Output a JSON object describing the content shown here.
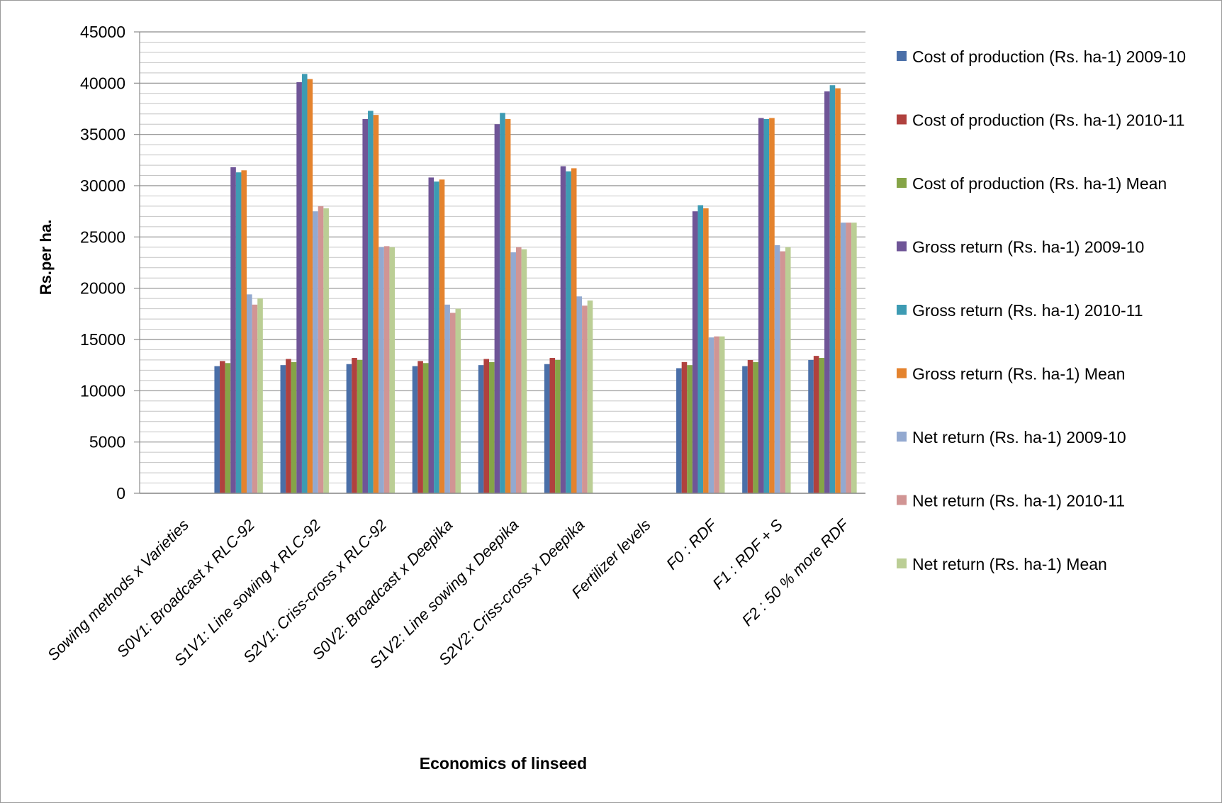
{
  "chart_data": {
    "type": "bar",
    "title": "",
    "xlabel": "Economics of linseed",
    "ylabel": "Rs.per ha.",
    "ylim": [
      0,
      45000
    ],
    "yticks": [
      0,
      5000,
      10000,
      15000,
      20000,
      25000,
      30000,
      35000,
      40000,
      45000
    ],
    "grid": true,
    "legend_position": "right",
    "categories": [
      "Sowing methods x Varieties",
      "S0V1: Broadcast x RLC-92",
      "S1V1: Line sowing x RLC-92",
      "S2V1: Criss-cross x  RLC-92",
      "S0V2: Broadcast x Deepika",
      "S1V2: Line sowing x Deepika",
      "S2V2: Criss-cross x Deepika",
      "Fertilizer levels",
      "F0 : RDF",
      "F1 : RDF + S",
      "F2 : 50 % more RDF"
    ],
    "series": [
      {
        "name": "Cost of  production  (Rs. ha-1) 2009-10",
        "color": "#4a6fa8",
        "values": [
          null,
          12400,
          12500,
          12600,
          12400,
          12500,
          12600,
          null,
          12200,
          12400,
          13000
        ]
      },
      {
        "name": "Cost of  production  (Rs. ha-1) 2010-11",
        "color": "#b0413e",
        "values": [
          null,
          12900,
          13100,
          13200,
          12900,
          13100,
          13200,
          null,
          12800,
          13000,
          13400
        ]
      },
      {
        "name": "Cost of  production  (Rs. ha-1) Mean",
        "color": "#85a447",
        "values": [
          null,
          12700,
          12800,
          13000,
          12700,
          12800,
          13000,
          null,
          12500,
          12800,
          13200
        ]
      },
      {
        "name": "Gross return   (Rs. ha-1) 2009-10",
        "color": "#6f5597",
        "values": [
          null,
          31800,
          40100,
          36500,
          30800,
          36000,
          31900,
          null,
          27500,
          36600,
          39200
        ]
      },
      {
        "name": "Gross return   (Rs. ha-1) 2010-11",
        "color": "#3d9bb3",
        "values": [
          null,
          31300,
          40900,
          37300,
          30400,
          37100,
          31400,
          null,
          28100,
          36500,
          39800
        ]
      },
      {
        "name": "Gross return   (Rs. ha-1) Mean",
        "color": "#e4832e",
        "values": [
          null,
          31500,
          40400,
          36900,
          30600,
          36500,
          31700,
          null,
          27800,
          36600,
          39500
        ]
      },
      {
        "name": "Net return   (Rs. ha-1) 2009-10",
        "color": "#93a9d0",
        "values": [
          null,
          19400,
          27500,
          24000,
          18400,
          23500,
          19200,
          null,
          15200,
          24200,
          26400
        ]
      },
      {
        "name": "Net return   (Rs. ha-1) 2010-11",
        "color": "#d19594",
        "values": [
          null,
          18400,
          28000,
          24100,
          17600,
          24000,
          18300,
          null,
          15300,
          23600,
          26400
        ]
      },
      {
        "name": "Net return   (Rs. ha-1) Mean",
        "color": "#bbce95",
        "values": [
          null,
          19000,
          27800,
          24000,
          18000,
          23800,
          18800,
          null,
          15300,
          24000,
          26400
        ]
      }
    ]
  }
}
